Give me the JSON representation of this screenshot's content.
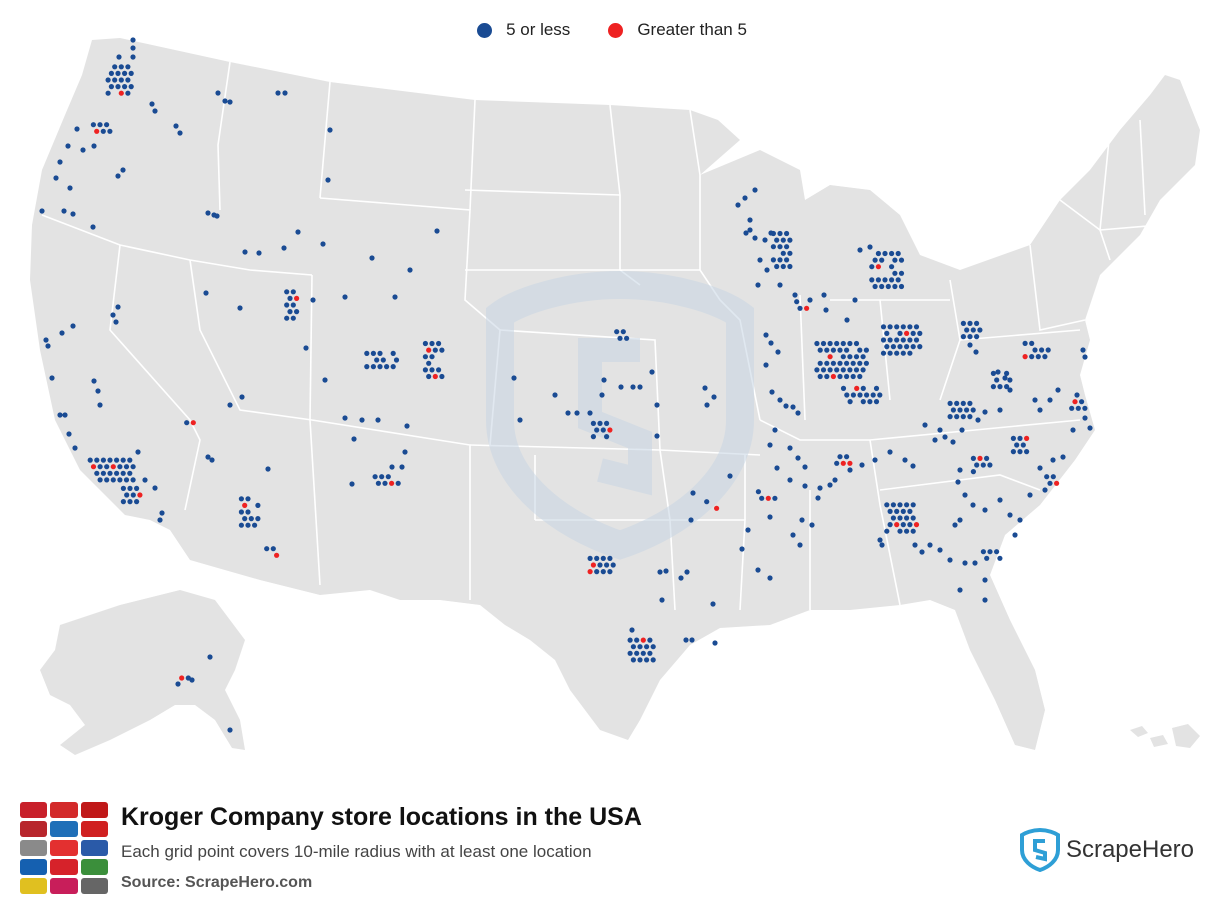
{
  "legend": {
    "items": [
      {
        "label": "5 or less",
        "color": "#1a4b93"
      },
      {
        "label": "Greater than 5",
        "color": "#ee2222"
      }
    ]
  },
  "map": {
    "land_color": "#e3e3e3",
    "border_color": "#ffffff",
    "watermark_color": "#c8d6e4"
  },
  "footer": {
    "title": "Kroger Company store locations in the USA",
    "subtitle": "Each grid point covers 10-mile radius with at least one location",
    "source": "Source: ScrapeHero.com",
    "brand_name": "ScrapeHero",
    "brand_color": "#2e9fd6"
  }
}
